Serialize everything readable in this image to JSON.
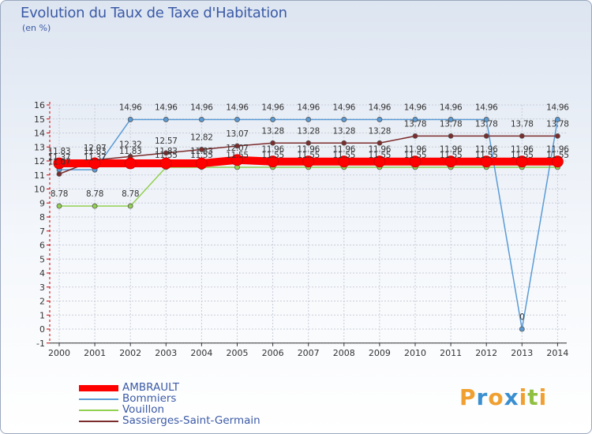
{
  "chart_data": {
    "type": "line",
    "title": "Evolution du Taux de Taxe d'Habitation",
    "subtitle": "(en %)",
    "categories": [
      "2000",
      "2001",
      "2002",
      "2003",
      "2004",
      "2005",
      "2006",
      "2007",
      "2008",
      "2009",
      "2010",
      "2011",
      "2012",
      "2013",
      "2014"
    ],
    "ylim": [
      -1,
      16
    ],
    "yticks": [
      "-1",
      "0",
      "1",
      "2",
      "3",
      "4",
      "5",
      "6",
      "7",
      "8",
      "9",
      "10",
      "11",
      "12",
      "13",
      "14",
      "15",
      "16"
    ],
    "grid": true,
    "legend_position": "bottom-left",
    "series": [
      {
        "name": "AMBRAULT",
        "color": "#ff0000",
        "values": [
          11.83,
          11.83,
          11.83,
          11.83,
          11.83,
          12.07,
          11.96,
          11.96,
          11.96,
          11.96,
          11.96,
          11.96,
          11.96,
          11.96,
          11.96
        ],
        "labels": [
          "11.83",
          "11.83",
          "11.83",
          "11.83",
          "11.83",
          "12.07",
          "11.96",
          "11.96",
          "11.96",
          "11.96",
          "11.96",
          "11.96",
          "11.96",
          "11.96",
          "11.96"
        ]
      },
      {
        "name": "Bommiers",
        "color": "#5a9bd5",
        "values": [
          11.37,
          11.37,
          14.96,
          14.96,
          14.96,
          14.96,
          14.96,
          14.96,
          14.96,
          14.96,
          14.96,
          14.96,
          14.96,
          0,
          14.96
        ],
        "labels": [
          "11.37",
          "11.37",
          "14.96",
          "14.96",
          "14.96",
          "14.96",
          "14.96",
          "14.96",
          "14.96",
          "14.96",
          "14.96",
          "14.96",
          "14.96",
          "0",
          "14.96"
        ]
      },
      {
        "name": "Vouillon",
        "color": "#92d050",
        "values": [
          8.78,
          8.78,
          8.78,
          11.55,
          11.55,
          11.55,
          11.55,
          11.55,
          11.55,
          11.55,
          11.55,
          11.55,
          11.55,
          11.55,
          11.55
        ],
        "labels": [
          "8.78",
          "8.78",
          "8.78",
          "11.55",
          "11.55",
          "11.55",
          "11.55",
          "11.55",
          "11.55",
          "11.55",
          "11.55",
          "11.55",
          "11.55",
          "11.55",
          "11.55"
        ]
      },
      {
        "name": "Sassierges-Saint-Germain",
        "color": "#7b2c2c",
        "values": [
          11.07,
          12.07,
          12.32,
          12.57,
          12.82,
          13.07,
          13.28,
          13.28,
          13.28,
          13.28,
          13.78,
          13.78,
          13.78,
          13.78,
          13.78
        ],
        "labels": [
          "11.07",
          "12.07",
          "12.32",
          "12.57",
          "12.82",
          "13.07",
          "13.28",
          "13.28",
          "13.28",
          "13.28",
          "13.78",
          "13.78",
          "13.78",
          "13.78",
          "13.78"
        ]
      }
    ]
  },
  "logo": {
    "letters": [
      "P",
      "r",
      "o",
      "x",
      "i",
      "t",
      "i"
    ],
    "colors": [
      "#f0a030",
      "#3a8fd0",
      "#f0a030",
      "#3a8fd0",
      "#f0a030",
      "#90c040",
      "#f0a030"
    ]
  }
}
